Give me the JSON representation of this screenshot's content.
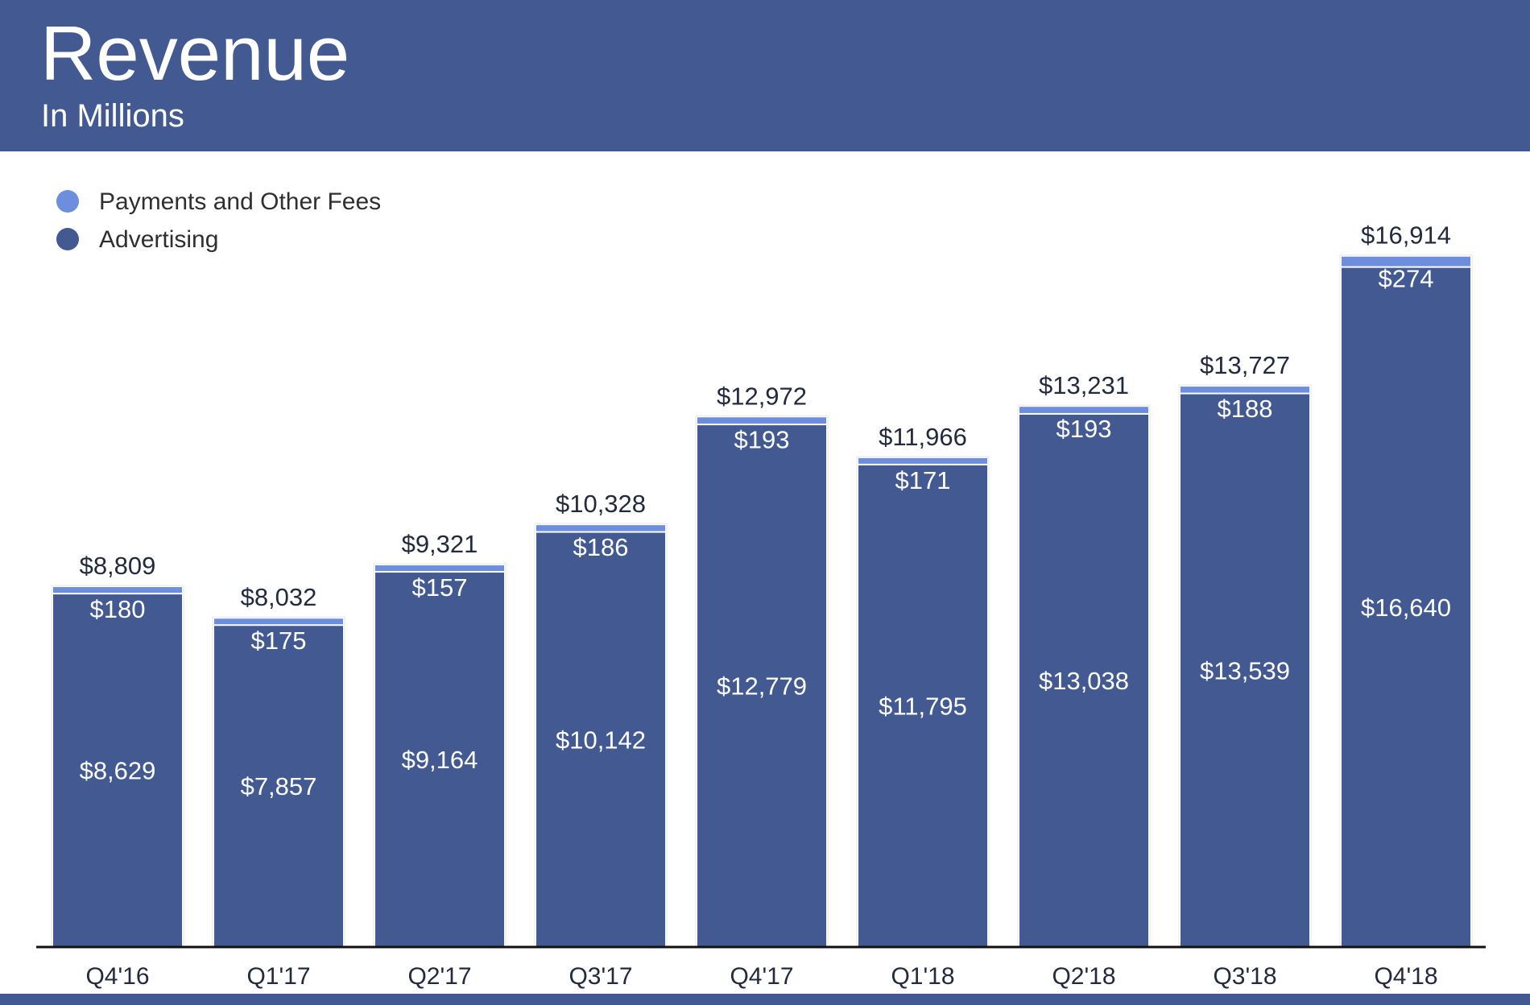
{
  "header": {
    "title": "Revenue",
    "subtitle": "In Millions"
  },
  "colors": {
    "header_bg": "#425A91",
    "advertising": "#425A91",
    "payments": "#6C8EDC",
    "axis": "#111111"
  },
  "chart_data": {
    "type": "bar",
    "stacked": true,
    "title": "Revenue",
    "subtitle": "In Millions",
    "xlabel": "",
    "ylabel": "",
    "categories": [
      "Q4'16",
      "Q1'17",
      "Q2'17",
      "Q3'17",
      "Q4'17",
      "Q1'18",
      "Q2'18",
      "Q3'18",
      "Q4'18"
    ],
    "series": [
      {
        "name": "Advertising",
        "values": [
          8629,
          7857,
          9164,
          10142,
          12779,
          11795,
          13038,
          13539,
          16640
        ],
        "color": "#425A91"
      },
      {
        "name": "Payments and Other Fees",
        "values": [
          180,
          175,
          157,
          186,
          193,
          171,
          193,
          188,
          274
        ],
        "color": "#6C8EDC"
      }
    ],
    "totals": [
      8809,
      8032,
      9321,
      10328,
      12972,
      11966,
      13231,
      13727,
      16914
    ],
    "value_labels": {
      "advertising": [
        "$8,629",
        "$7,857",
        "$9,164",
        "$10,142",
        "$12,779",
        "$11,795",
        "$13,038",
        "$13,539",
        "$16,640"
      ],
      "payments": [
        "$180",
        "$175",
        "$157",
        "$186",
        "$193",
        "$171",
        "$193",
        "$188",
        "$274"
      ],
      "totals": [
        "$8,809",
        "$8,032",
        "$9,321",
        "$10,328",
        "$12,972",
        "$11,966",
        "$13,231",
        "$13,727",
        "$16,914"
      ]
    },
    "legend": {
      "position": "top-left",
      "entries": [
        "Payments and Other Fees",
        "Advertising"
      ]
    },
    "ylim": [
      0,
      17600
    ],
    "grid": false
  }
}
